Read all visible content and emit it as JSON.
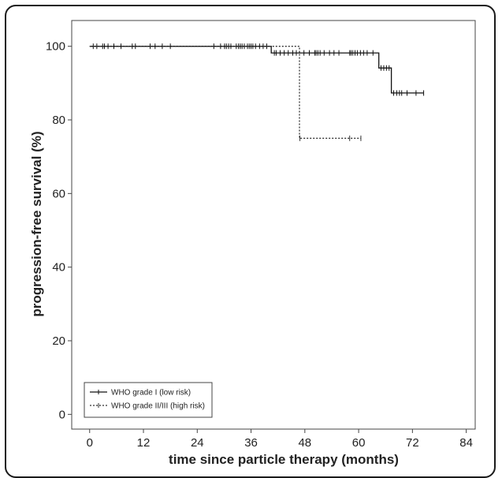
{
  "chart_data": {
    "type": "line",
    "subtype": "kaplan-meier",
    "title": "",
    "xlabel": "time since particle therapy (months)",
    "ylabel": "progression-free survival (%)",
    "xlim": [
      -4,
      86
    ],
    "ylim": [
      -4,
      107
    ],
    "xticks": [
      0,
      12,
      24,
      36,
      48,
      60,
      72,
      84
    ],
    "yticks": [
      0,
      20,
      40,
      60,
      80,
      100
    ],
    "grid": false,
    "legend_position": "bottom-left",
    "series": [
      {
        "name": "WHO grade I (low risk)",
        "style": "solid",
        "color": "#111111",
        "steps": [
          [
            0,
            100
          ],
          [
            40.5,
            100
          ],
          [
            40.5,
            98.2
          ],
          [
            64.5,
            98.2
          ],
          [
            64.5,
            94.1
          ],
          [
            67.3,
            94.1
          ],
          [
            67.3,
            87.3
          ],
          [
            74.5,
            87.3
          ]
        ],
        "censored": [
          [
            0.8,
            100
          ],
          [
            1.6,
            100
          ],
          [
            2.9,
            100
          ],
          [
            3.3,
            100
          ],
          [
            4.1,
            100
          ],
          [
            5.4,
            100
          ],
          [
            7.0,
            100
          ],
          [
            9.5,
            100
          ],
          [
            10.2,
            100
          ],
          [
            13.5,
            100
          ],
          [
            14.6,
            100
          ],
          [
            16.2,
            100
          ],
          [
            18.0,
            100
          ],
          [
            27.7,
            100
          ],
          [
            29.2,
            100
          ],
          [
            30.1,
            100
          ],
          [
            30.5,
            100
          ],
          [
            31.0,
            100
          ],
          [
            31.5,
            100
          ],
          [
            32.7,
            100
          ],
          [
            33.2,
            100
          ],
          [
            33.6,
            100
          ],
          [
            34.0,
            100
          ],
          [
            34.5,
            100
          ],
          [
            35.2,
            100
          ],
          [
            35.6,
            100
          ],
          [
            36.0,
            100
          ],
          [
            36.4,
            100
          ],
          [
            37.0,
            100
          ],
          [
            37.9,
            100
          ],
          [
            38.7,
            100
          ],
          [
            39.5,
            100
          ],
          [
            41.2,
            98.2
          ],
          [
            41.6,
            98.2
          ],
          [
            42.5,
            98.2
          ],
          [
            43.4,
            98.2
          ],
          [
            44.3,
            98.2
          ],
          [
            45.3,
            98.2
          ],
          [
            46.1,
            98.2
          ],
          [
            47.8,
            98.2
          ],
          [
            49.0,
            98.2
          ],
          [
            50.2,
            98.2
          ],
          [
            50.5,
            98.2
          ],
          [
            50.9,
            98.2
          ],
          [
            51.4,
            98.2
          ],
          [
            52.3,
            98.2
          ],
          [
            53.5,
            98.2
          ],
          [
            54.5,
            98.2
          ],
          [
            55.6,
            98.2
          ],
          [
            58.0,
            98.2
          ],
          [
            58.3,
            98.2
          ],
          [
            58.7,
            98.2
          ],
          [
            59.2,
            98.2
          ],
          [
            59.7,
            98.2
          ],
          [
            60.4,
            98.2
          ],
          [
            61.1,
            98.2
          ],
          [
            61.9,
            98.2
          ],
          [
            63.2,
            98.2
          ],
          [
            65.0,
            94.1
          ],
          [
            65.6,
            94.1
          ],
          [
            66.2,
            94.1
          ],
          [
            66.8,
            94.1
          ],
          [
            67.8,
            87.3
          ],
          [
            68.5,
            87.3
          ],
          [
            69.1,
            87.3
          ],
          [
            69.6,
            87.3
          ],
          [
            70.8,
            87.3
          ],
          [
            72.8,
            87.3
          ],
          [
            74.5,
            87.3
          ]
        ]
      },
      {
        "name": "WHO grade II/III (high risk)",
        "style": "dotted",
        "color": "#333333",
        "steps": [
          [
            0,
            100
          ],
          [
            46.8,
            100
          ],
          [
            46.8,
            75
          ],
          [
            60.5,
            75
          ]
        ],
        "censored": [
          [
            46.9,
            75
          ],
          [
            58.0,
            75
          ],
          [
            60.5,
            75
          ]
        ]
      }
    ]
  }
}
